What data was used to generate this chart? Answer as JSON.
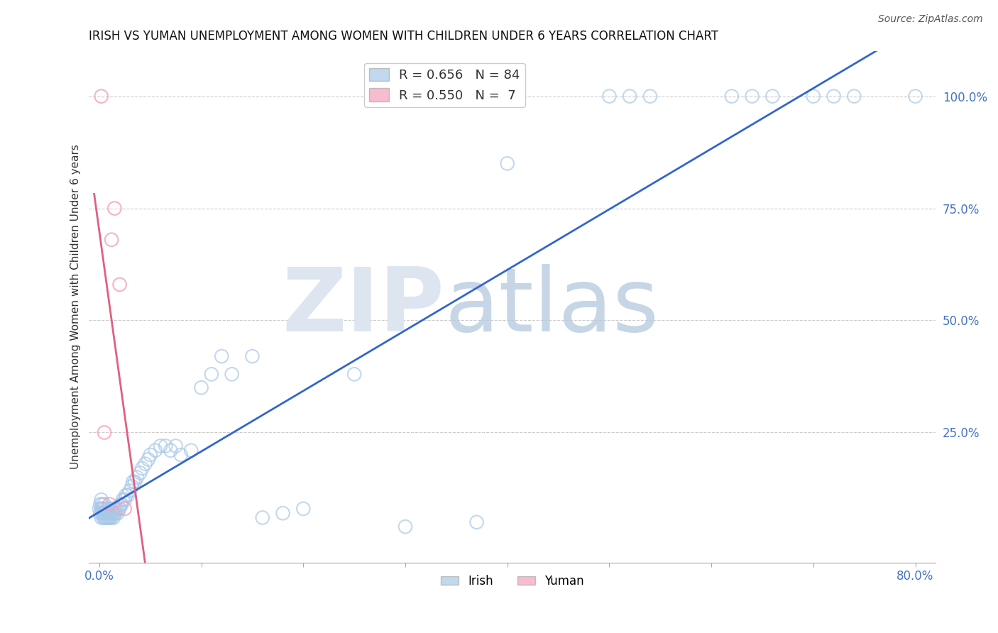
{
  "title": "IRISH VS YUMAN UNEMPLOYMENT AMONG WOMEN WITH CHILDREN UNDER 6 YEARS CORRELATION CHART",
  "source": "Source: ZipAtlas.com",
  "ylabel": "Unemployment Among Women with Children Under 6 years",
  "legend_irish_r": "R = 0.656",
  "legend_irish_n": "N = 84",
  "legend_yuman_r": "R = 0.550",
  "legend_yuman_n": "N =  7",
  "watermark_zip": "ZIP",
  "watermark_atlas": "atlas",
  "irish_color": "#a8c8e8",
  "yuman_color": "#f4a0b8",
  "irish_line_color": "#3366cc",
  "yuman_line_color": "#e06080",
  "background_color": "#ffffff",
  "grid_color": "#cccccc",
  "irish_x": [
    0.0,
    0.001,
    0.001,
    0.002,
    0.002,
    0.002,
    0.003,
    0.003,
    0.003,
    0.004,
    0.004,
    0.004,
    0.005,
    0.005,
    0.005,
    0.006,
    0.006,
    0.006,
    0.007,
    0.007,
    0.008,
    0.008,
    0.009,
    0.009,
    0.01,
    0.01,
    0.011,
    0.011,
    0.012,
    0.012,
    0.013,
    0.014,
    0.015,
    0.015,
    0.016,
    0.017,
    0.018,
    0.019,
    0.02,
    0.021,
    0.022,
    0.023,
    0.025,
    0.026,
    0.028,
    0.03,
    0.032,
    0.033,
    0.035,
    0.037,
    0.04,
    0.042,
    0.045,
    0.048,
    0.05,
    0.055,
    0.06,
    0.065,
    0.07,
    0.075,
    0.08,
    0.09,
    0.1,
    0.11,
    0.12,
    0.13,
    0.15,
    0.16,
    0.18,
    0.2,
    0.25,
    0.3,
    0.37,
    0.4,
    0.5,
    0.52,
    0.54,
    0.62,
    0.64,
    0.66,
    0.7,
    0.72,
    0.74,
    0.8
  ],
  "irish_y": [
    0.08,
    0.07,
    0.09,
    0.06,
    0.08,
    0.1,
    0.07,
    0.08,
    0.09,
    0.06,
    0.07,
    0.08,
    0.06,
    0.07,
    0.09,
    0.06,
    0.07,
    0.08,
    0.06,
    0.07,
    0.06,
    0.08,
    0.06,
    0.07,
    0.06,
    0.07,
    0.06,
    0.07,
    0.06,
    0.08,
    0.07,
    0.06,
    0.07,
    0.08,
    0.07,
    0.08,
    0.07,
    0.08,
    0.08,
    0.09,
    0.09,
    0.1,
    0.1,
    0.11,
    0.11,
    0.12,
    0.13,
    0.14,
    0.14,
    0.15,
    0.16,
    0.17,
    0.18,
    0.19,
    0.2,
    0.21,
    0.22,
    0.22,
    0.21,
    0.22,
    0.2,
    0.21,
    0.35,
    0.38,
    0.42,
    0.38,
    0.42,
    0.06,
    0.07,
    0.08,
    0.38,
    0.04,
    0.05,
    0.85,
    1.0,
    1.0,
    1.0,
    1.0,
    1.0,
    1.0,
    1.0,
    1.0,
    1.0,
    1.0
  ],
  "yuman_x": [
    0.002,
    0.005,
    0.01,
    0.012,
    0.015,
    0.02,
    0.025
  ],
  "yuman_y": [
    1.0,
    0.25,
    0.09,
    0.68,
    0.75,
    0.58,
    0.08
  ],
  "xmin": -0.01,
  "xmax": 0.82,
  "ymin": -0.04,
  "ymax": 1.1
}
